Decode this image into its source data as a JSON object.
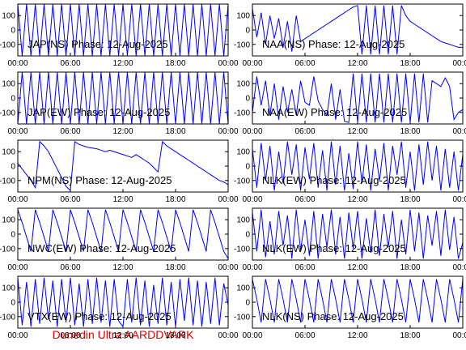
{
  "chart_data": [
    {
      "type": "line",
      "title": "JAP(NS) Phase: 12-Aug-2025",
      "color": "#0000ff",
      "xlim": [
        0,
        24
      ],
      "ylim": [
        -180,
        180
      ],
      "yticks": [
        100,
        0,
        -100
      ],
      "xticks": [
        {
          "value": 0,
          "label": "00:00"
        },
        {
          "value": 6,
          "label": "06:00"
        },
        {
          "value": 12,
          "label": "12:00"
        },
        {
          "value": 18,
          "label": "18:00"
        },
        {
          "value": 24,
          "label": "00:00"
        }
      ],
      "x": [
        0,
        0.5,
        1,
        1.5,
        2,
        2.5,
        3,
        3.5,
        4,
        4.5,
        5,
        5.5,
        6,
        6.5,
        7,
        7.5,
        8,
        8.5,
        9,
        9.5,
        10,
        10.5,
        11,
        11.5,
        12,
        12.5,
        13,
        13.5,
        14,
        14.5,
        15,
        15.5,
        16,
        16.5,
        17,
        17.5,
        18,
        18.5,
        19,
        19.5,
        20,
        20.5,
        21,
        21.5,
        22,
        22.5,
        23,
        23.5,
        24
      ],
      "values": [
        180,
        -180,
        180,
        -180,
        180,
        -180,
        180,
        -180,
        180,
        -180,
        180,
        -180,
        180,
        -180,
        180,
        -180,
        180,
        -180,
        180,
        -180,
        180,
        -180,
        180,
        -180,
        180,
        -180,
        180,
        -180,
        180,
        -180,
        180,
        -180,
        180,
        -180,
        180,
        -180,
        180,
        -180,
        180,
        -180,
        180,
        -180,
        180,
        -180,
        180,
        -180,
        180,
        -180,
        180
      ]
    },
    {
      "type": "line",
      "title": "NAA(NS) Phase: 12-Aug-2025",
      "color": "#0000ff",
      "xlim": [
        0,
        24
      ],
      "ylim": [
        -180,
        180
      ],
      "yticks": [
        100,
        0,
        -100
      ],
      "xticks": [
        {
          "value": 0,
          "label": "00:00"
        },
        {
          "value": 6,
          "label": "06:00"
        },
        {
          "value": 12,
          "label": "12:00"
        },
        {
          "value": 18,
          "label": "18:00"
        },
        {
          "value": 24,
          "label": "00:00"
        }
      ],
      "x": [
        0,
        0.5,
        1,
        1.5,
        2,
        2.5,
        3,
        3.5,
        4,
        4.5,
        5,
        5.5,
        6,
        6.5,
        7,
        7.5,
        8,
        8.5,
        9,
        9.5,
        10,
        10.5,
        11,
        11.5,
        12,
        12.5,
        13,
        13.5,
        14,
        14.5,
        15,
        15.5,
        16,
        16.5,
        17,
        17.5,
        18,
        18.5,
        19,
        19.5,
        20,
        20.5,
        21,
        21.5,
        22,
        22.5,
        23,
        23.5,
        24
      ],
      "values": [
        150,
        -50,
        120,
        -100,
        100,
        -60,
        80,
        -120,
        60,
        -150,
        100,
        -80,
        -60,
        -40,
        -20,
        0,
        20,
        40,
        60,
        80,
        100,
        120,
        140,
        160,
        170,
        -170,
        170,
        -170,
        170,
        -170,
        170,
        -170,
        170,
        -170,
        170,
        100,
        60,
        40,
        20,
        0,
        -20,
        -40,
        -60,
        -80,
        -90,
        -100,
        -110,
        -120,
        -120
      ]
    },
    {
      "type": "line",
      "title": "JAP(EW) Phase: 12-Aug-2025",
      "color": "#0000ff",
      "xlim": [
        0,
        24
      ],
      "ylim": [
        -180,
        180
      ],
      "yticks": [
        100,
        0,
        -100
      ],
      "xticks": [
        {
          "value": 0,
          "label": "00:00"
        },
        {
          "value": 6,
          "label": "06:00"
        },
        {
          "value": 12,
          "label": "12:00"
        },
        {
          "value": 18,
          "label": "18:00"
        },
        {
          "value": 24,
          "label": "00:00"
        }
      ],
      "x": [
        0,
        0.5,
        1,
        1.5,
        2,
        2.5,
        3,
        3.5,
        4,
        4.5,
        5,
        5.5,
        6,
        6.5,
        7,
        7.5,
        8,
        8.5,
        9,
        9.5,
        10,
        10.5,
        11,
        11.5,
        12,
        12.5,
        13,
        13.5,
        14,
        14.5,
        15,
        15.5,
        16,
        16.5,
        17,
        17.5,
        18,
        18.5,
        19,
        19.5,
        20,
        20.5,
        21,
        21.5,
        22,
        22.5,
        23,
        23.5,
        24
      ],
      "values": [
        -180,
        180,
        -180,
        180,
        -180,
        180,
        -180,
        180,
        -180,
        180,
        -180,
        180,
        -180,
        180,
        -180,
        180,
        -180,
        180,
        -180,
        180,
        -180,
        180,
        -180,
        180,
        -180,
        180,
        -180,
        180,
        -180,
        180,
        -180,
        180,
        -180,
        180,
        -180,
        180,
        -180,
        180,
        -180,
        180,
        -180,
        180,
        -180,
        180,
        -180,
        180,
        -180,
        180,
        -180
      ]
    },
    {
      "type": "line",
      "title": "NAA(EW) Phase: 12-Aug-2025",
      "color": "#0000ff",
      "xlim": [
        0,
        24
      ],
      "ylim": [
        -180,
        180
      ],
      "yticks": [
        100,
        0,
        -100
      ],
      "xticks": [
        {
          "value": 0,
          "label": "00:00"
        },
        {
          "value": 6,
          "label": "06:00"
        },
        {
          "value": 12,
          "label": "12:00"
        },
        {
          "value": 18,
          "label": "18:00"
        },
        {
          "value": 24,
          "label": "00:00"
        }
      ],
      "x": [
        0,
        0.5,
        1,
        1.5,
        2,
        2.5,
        3,
        3.5,
        4,
        4.5,
        5,
        5.5,
        6,
        6.5,
        7,
        7.5,
        8,
        8.5,
        9,
        9.5,
        10,
        10.5,
        11,
        11.5,
        12,
        12.5,
        13,
        13.5,
        14,
        14.5,
        15,
        15.5,
        16,
        16.5,
        17,
        17.5,
        18,
        18.5,
        19,
        19.5,
        20,
        20.5,
        21,
        21.5,
        22,
        22.5,
        23,
        23.5,
        24
      ],
      "values": [
        -100,
        150,
        -50,
        120,
        -120,
        100,
        -150,
        80,
        -100,
        60,
        -120,
        120,
        -30,
        -50,
        150,
        -20,
        -80,
        -120,
        100,
        -150,
        60,
        -160,
        -170,
        170,
        -170,
        170,
        -170,
        170,
        -170,
        170,
        -170,
        170,
        -170,
        170,
        -170,
        170,
        -170,
        170,
        -170,
        170,
        -170,
        120,
        100,
        80,
        140,
        80,
        -150,
        -100,
        -80
      ]
    },
    {
      "type": "line",
      "title": "NPM(NS) Phase: 12-Aug-2025",
      "color": "#0000ff",
      "xlim": [
        0,
        24
      ],
      "ylim": [
        -180,
        180
      ],
      "yticks": [
        100,
        0,
        -100
      ],
      "xticks": [
        {
          "value": 0,
          "label": "00:00"
        },
        {
          "value": 6,
          "label": "06:00"
        },
        {
          "value": 12,
          "label": "12:00"
        },
        {
          "value": 18,
          "label": "18:00"
        },
        {
          "value": 24,
          "label": "00:00"
        }
      ],
      "x": [
        0,
        0.5,
        1,
        1.5,
        2,
        2.5,
        3,
        3.5,
        4,
        4.5,
        5,
        5.5,
        6,
        6.5,
        7,
        7.5,
        8,
        8.5,
        9,
        9.5,
        10,
        10.5,
        11,
        11.5,
        12,
        12.5,
        13,
        13.5,
        14,
        14.5,
        15,
        15.5,
        16,
        16.5,
        17,
        17.5,
        18,
        18.5,
        19,
        19.5,
        20,
        20.5,
        21,
        21.5,
        22,
        22.5,
        23,
        23.5,
        24
      ],
      "values": [
        20,
        -20,
        -60,
        -100,
        -150,
        170,
        140,
        100,
        40,
        -20,
        -80,
        -140,
        -170,
        170,
        150,
        140,
        130,
        125,
        120,
        110,
        100,
        110,
        100,
        90,
        80,
        70,
        60,
        80,
        60,
        40,
        20,
        -10,
        -40,
        170,
        140,
        120,
        100,
        80,
        60,
        40,
        20,
        0,
        -20,
        -40,
        -60,
        -80,
        -100,
        -110,
        -130
      ]
    },
    {
      "type": "line",
      "title": "NLK(EW) Phase: 12-Aug-2025",
      "color": "#0000ff",
      "xlim": [
        0,
        24
      ],
      "ylim": [
        -180,
        180
      ],
      "yticks": [
        100,
        0,
        -100
      ],
      "xticks": [
        {
          "value": 0,
          "label": "00:00"
        },
        {
          "value": 6,
          "label": "06:00"
        },
        {
          "value": 12,
          "label": "12:00"
        },
        {
          "value": 18,
          "label": "18:00"
        },
        {
          "value": 24,
          "label": "00:00"
        }
      ],
      "x": [
        0,
        0.5,
        1,
        1.5,
        2,
        2.5,
        3,
        3.5,
        4,
        4.5,
        5,
        5.5,
        6,
        6.5,
        7,
        7.5,
        8,
        8.5,
        9,
        9.5,
        10,
        10.5,
        11,
        11.5,
        12,
        12.5,
        13,
        13.5,
        14,
        14.5,
        15,
        15.5,
        16,
        16.5,
        17,
        17.5,
        18,
        18.5,
        19,
        19.5,
        20,
        20.5,
        21,
        21.5,
        22,
        22.5,
        23,
        23.5,
        24
      ],
      "values": [
        120,
        -150,
        160,
        -100,
        140,
        -170,
        100,
        -120,
        170,
        -60,
        150,
        -170,
        130,
        -90,
        160,
        -150,
        110,
        -170,
        170,
        -130,
        140,
        -170,
        90,
        -160,
        170,
        -120,
        150,
        -170,
        120,
        -100,
        160,
        -170,
        140,
        -60,
        170,
        -150,
        100,
        -170,
        150,
        -130,
        170,
        -100,
        140,
        -170,
        120,
        -150,
        100,
        -170,
        80
      ]
    },
    {
      "type": "line",
      "title": "NWC(EW) Phase: 12-Aug-2025",
      "color": "#0000ff",
      "xlim": [
        0,
        24
      ],
      "ylim": [
        -180,
        180
      ],
      "yticks": [
        100,
        0,
        -100
      ],
      "xticks": [
        {
          "value": 0,
          "label": "00:00"
        },
        {
          "value": 6,
          "label": "06:00"
        },
        {
          "value": 12,
          "label": "12:00"
        },
        {
          "value": 18,
          "label": "18:00"
        },
        {
          "value": 24,
          "label": "00:00"
        }
      ],
      "x": [
        0,
        0.5,
        1,
        1.5,
        2,
        2.5,
        3,
        3.5,
        4,
        4.5,
        5,
        5.5,
        6,
        6.5,
        7,
        7.5,
        8,
        8.5,
        9,
        9.5,
        10,
        10.5,
        11,
        11.5,
        12,
        12.5,
        13,
        13.5,
        14,
        14.5,
        15,
        15.5,
        16,
        16.5,
        17,
        17.5,
        18,
        18.5,
        19,
        19.5,
        20,
        20.5,
        21,
        21.5,
        22,
        22.5,
        23,
        23.5,
        24
      ],
      "values": [
        170,
        80,
        -20,
        -120,
        170,
        80,
        -20,
        -120,
        170,
        80,
        -20,
        -120,
        170,
        80,
        -20,
        -120,
        170,
        80,
        -20,
        -120,
        170,
        80,
        -20,
        -120,
        170,
        80,
        -20,
        -120,
        170,
        80,
        -20,
        -120,
        170,
        80,
        -20,
        -120,
        170,
        80,
        -20,
        -120,
        170,
        80,
        -20,
        -120,
        170,
        80,
        -20,
        -120,
        -170
      ]
    },
    {
      "type": "line",
      "title": "NLK(EW) Phase: 12-Aug-2025",
      "color": "#0000ff",
      "xlim": [
        0,
        24
      ],
      "ylim": [
        -180,
        180
      ],
      "yticks": [
        100,
        0,
        -100
      ],
      "xticks": [
        {
          "value": 0,
          "label": "00:00"
        },
        {
          "value": 6,
          "label": "06:00"
        },
        {
          "value": 12,
          "label": "12:00"
        },
        {
          "value": 18,
          "label": "18:00"
        },
        {
          "value": 24,
          "label": "00:00"
        }
      ],
      "x": [
        0,
        0.5,
        1,
        1.5,
        2,
        2.5,
        3,
        3.5,
        4,
        4.5,
        5,
        5.5,
        6,
        6.5,
        7,
        7.5,
        8,
        8.5,
        9,
        9.5,
        10,
        10.5,
        11,
        11.5,
        12,
        12.5,
        13,
        13.5,
        14,
        14.5,
        15,
        15.5,
        16,
        16.5,
        17,
        17.5,
        18,
        18.5,
        19,
        19.5,
        20,
        20.5,
        21,
        21.5,
        22,
        22.5,
        23,
        23.5,
        24
      ],
      "values": [
        150,
        -120,
        170,
        -160,
        90,
        -140,
        160,
        -80,
        130,
        -170,
        170,
        -110,
        100,
        -150,
        160,
        -170,
        140,
        -90,
        170,
        -140,
        120,
        -170,
        150,
        -100,
        160,
        -170,
        110,
        -130,
        170,
        -150,
        140,
        -90,
        160,
        -170,
        100,
        -140,
        170,
        -120,
        150,
        -170,
        130,
        -80,
        160,
        -150,
        170,
        -110,
        120,
        -170,
        -60
      ]
    },
    {
      "type": "line",
      "title": "VTX(EW) Phase: 12-Aug-2025",
      "color": "#0000ff",
      "xlim": [
        0,
        24
      ],
      "ylim": [
        -180,
        180
      ],
      "yticks": [
        100,
        0,
        -100
      ],
      "xticks": [
        {
          "value": 0,
          "label": "00:00"
        },
        {
          "value": 6,
          "label": "06:00"
        },
        {
          "value": 12,
          "label": "12:00"
        },
        {
          "value": 18,
          "label": "18:00"
        },
        {
          "value": 24,
          "label": "00:00"
        }
      ],
      "x": [
        0,
        0.5,
        1,
        1.5,
        2,
        2.5,
        3,
        3.5,
        4,
        4.5,
        5,
        5.5,
        6,
        6.5,
        7,
        7.5,
        8,
        8.5,
        9,
        9.5,
        10,
        10.5,
        11,
        11.5,
        12,
        12.5,
        13,
        13.5,
        14,
        14.5,
        15,
        15.5,
        16,
        16.5,
        17,
        17.5,
        18,
        18.5,
        19,
        19.5,
        20,
        20.5,
        21,
        21.5,
        22,
        22.5,
        23,
        23.5,
        24
      ],
      "values": [
        170,
        -160,
        140,
        -170,
        160,
        -150,
        170,
        -120,
        150,
        -170,
        160,
        -140,
        170,
        -160,
        130,
        -170,
        160,
        -150,
        170,
        -140,
        150,
        -170,
        160,
        -130,
        -170,
        160,
        -140,
        170,
        -160,
        150,
        -170,
        120,
        -150,
        170,
        -160,
        140,
        -170,
        160,
        -130,
        170,
        -160,
        150,
        -170,
        140,
        -150,
        170,
        -160,
        130,
        -20
      ]
    },
    {
      "type": "line",
      "title": "NLK(NS) Phase: 12-Aug-2025",
      "color": "#0000ff",
      "xlim": [
        0,
        24
      ],
      "ylim": [
        -180,
        180
      ],
      "yticks": [
        100,
        0,
        -100
      ],
      "xticks": [
        {
          "value": 0,
          "label": "00:00"
        },
        {
          "value": 6,
          "label": "06:00"
        },
        {
          "value": 12,
          "label": "12:00"
        },
        {
          "value": 18,
          "label": "18:00"
        },
        {
          "value": 24,
          "label": "00:00"
        }
      ],
      "x": [
        0,
        0.5,
        1,
        1.5,
        2,
        2.5,
        3,
        3.5,
        4,
        4.5,
        5,
        5.5,
        6,
        6.5,
        7,
        7.5,
        8,
        8.5,
        9,
        9.5,
        10,
        10.5,
        11,
        11.5,
        12,
        12.5,
        13,
        13.5,
        14,
        14.5,
        15,
        15.5,
        16,
        16.5,
        17,
        17.5,
        18,
        18.5,
        19,
        19.5,
        20,
        20.5,
        21,
        21.5,
        22,
        22.5,
        23,
        23.5,
        24
      ],
      "values": [
        160,
        20,
        -140,
        160,
        20,
        -140,
        160,
        20,
        -140,
        160,
        20,
        -140,
        160,
        20,
        -140,
        160,
        20,
        -140,
        160,
        20,
        -140,
        160,
        20,
        -140,
        160,
        20,
        -140,
        160,
        20,
        -140,
        160,
        20,
        -140,
        160,
        20,
        -140,
        160,
        20,
        -140,
        160,
        20,
        -140,
        160,
        20,
        -140,
        160,
        20,
        -140,
        160
      ]
    }
  ],
  "footer": "Dunedin Ultra AARDDVARK"
}
